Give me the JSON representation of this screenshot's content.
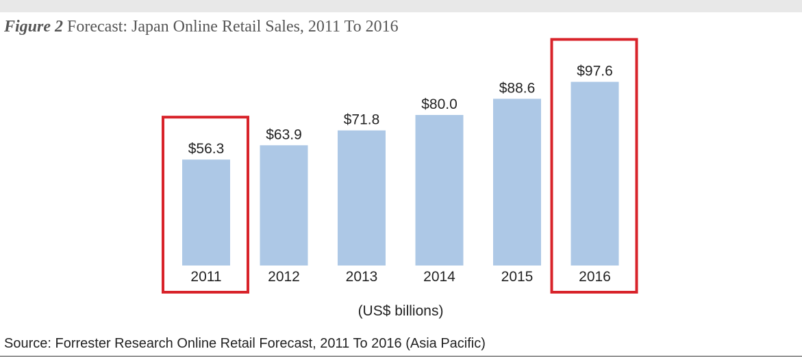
{
  "figure": {
    "label": "Figure 2",
    "title": "Forecast: Japan Online Retail Sales, 2011 To 2016"
  },
  "source": "Source: Forrester Research Online Retail Forecast, 2011 To 2016 (Asia Pacific)",
  "colors": {
    "bar": "#adc8e6",
    "highlight": "#d8232a",
    "text": "#222222"
  },
  "chart_data": {
    "type": "bar",
    "title": "Forecast: Japan Online Retail Sales, 2011 To 2016",
    "xlabel": "(US$ billions)",
    "ylabel": "",
    "categories": [
      "2011",
      "2012",
      "2013",
      "2014",
      "2015",
      "2016"
    ],
    "values": [
      56.3,
      63.9,
      71.8,
      80.0,
      88.6,
      97.6
    ],
    "value_labels": [
      "$56.3",
      "$63.9",
      "$71.8",
      "$80.0",
      "$88.6",
      "$97.6"
    ],
    "highlighted_categories": [
      "2011",
      "2016"
    ],
    "grid": false,
    "legend": "none"
  }
}
